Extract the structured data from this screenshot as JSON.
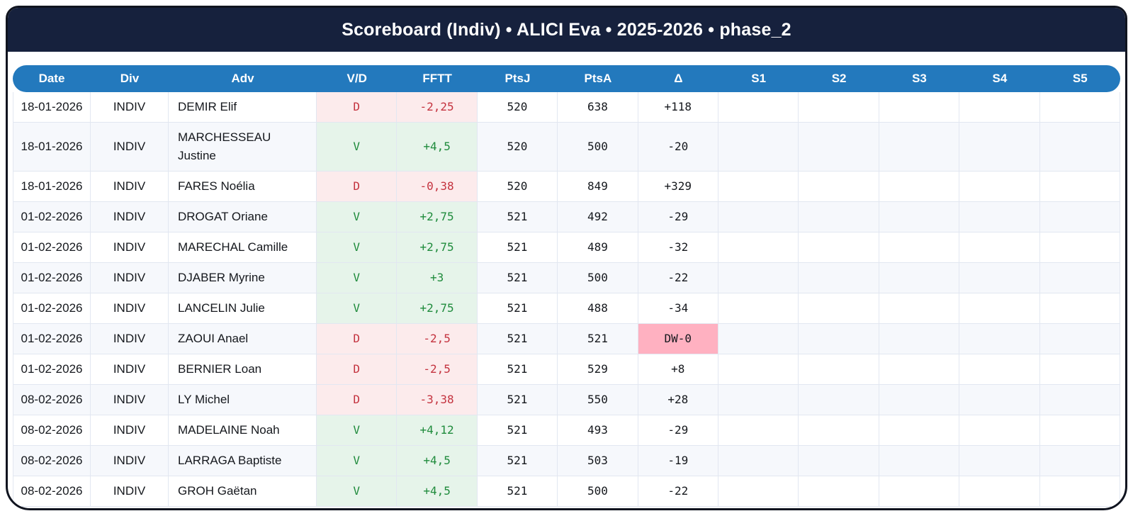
{
  "title": "Scoreboard (Indiv) • ALICI Eva • 2025-2026 • phase_2",
  "colors": {
    "frame": "#10141f",
    "navy": "#16213d",
    "header-blue": "#2379bd",
    "stripe": "#f6f8fc",
    "grid-line": "#e2e7f1",
    "win-bg": "#e6f4ea",
    "win-text": "#1f8b3c",
    "loss-bg": "#fcebec",
    "loss-text": "#c4333f",
    "dw-bg": "#ffb1c1",
    "text": "#15181d"
  },
  "table": {
    "columns": [
      "Date",
      "Div",
      "Adv",
      "V/D",
      "FFTT",
      "PtsJ",
      "PtsA",
      "Δ",
      "S1",
      "S2",
      "S3",
      "S4",
      "S5"
    ],
    "rows": [
      {
        "date": "18-01-2026",
        "div": "INDIV",
        "adv": "DEMIR Elif",
        "vd": "D",
        "fftt": "-2,25",
        "ptsj": "520",
        "ptsa": "638",
        "delta": "+118",
        "delta_dw": false
      },
      {
        "date": "18-01-2026",
        "div": "INDIV",
        "adv": "MARCHESSEAU Justine",
        "vd": "V",
        "fftt": "+4,5",
        "ptsj": "520",
        "ptsa": "500",
        "delta": "-20",
        "delta_dw": false
      },
      {
        "date": "18-01-2026",
        "div": "INDIV",
        "adv": "FARES Noélia",
        "vd": "D",
        "fftt": "-0,38",
        "ptsj": "520",
        "ptsa": "849",
        "delta": "+329",
        "delta_dw": false
      },
      {
        "date": "01-02-2026",
        "div": "INDIV",
        "adv": "DROGAT Oriane",
        "vd": "V",
        "fftt": "+2,75",
        "ptsj": "521",
        "ptsa": "492",
        "delta": "-29",
        "delta_dw": false
      },
      {
        "date": "01-02-2026",
        "div": "INDIV",
        "adv": "MARECHAL Camille",
        "vd": "V",
        "fftt": "+2,75",
        "ptsj": "521",
        "ptsa": "489",
        "delta": "-32",
        "delta_dw": false
      },
      {
        "date": "01-02-2026",
        "div": "INDIV",
        "adv": "DJABER Myrine",
        "vd": "V",
        "fftt": "+3",
        "ptsj": "521",
        "ptsa": "500",
        "delta": "-22",
        "delta_dw": false
      },
      {
        "date": "01-02-2026",
        "div": "INDIV",
        "adv": "LANCELIN Julie",
        "vd": "V",
        "fftt": "+2,75",
        "ptsj": "521",
        "ptsa": "488",
        "delta": "-34",
        "delta_dw": false
      },
      {
        "date": "01-02-2026",
        "div": "INDIV",
        "adv": "ZAOUI Anael",
        "vd": "D",
        "fftt": "-2,5",
        "ptsj": "521",
        "ptsa": "521",
        "delta": "DW-0",
        "delta_dw": true
      },
      {
        "date": "01-02-2026",
        "div": "INDIV",
        "adv": "BERNIER Loan",
        "vd": "D",
        "fftt": "-2,5",
        "ptsj": "521",
        "ptsa": "529",
        "delta": "+8",
        "delta_dw": false
      },
      {
        "date": "08-02-2026",
        "div": "INDIV",
        "adv": "LY Michel",
        "vd": "D",
        "fftt": "-3,38",
        "ptsj": "521",
        "ptsa": "550",
        "delta": "+28",
        "delta_dw": false
      },
      {
        "date": "08-02-2026",
        "div": "INDIV",
        "adv": "MADELAINE Noah",
        "vd": "V",
        "fftt": "+4,12",
        "ptsj": "521",
        "ptsa": "493",
        "delta": "-29",
        "delta_dw": false
      },
      {
        "date": "08-02-2026",
        "div": "INDIV",
        "adv": "LARRAGA Baptiste",
        "vd": "V",
        "fftt": "+4,5",
        "ptsj": "521",
        "ptsa": "503",
        "delta": "-19",
        "delta_dw": false
      },
      {
        "date": "08-02-2026",
        "div": "INDIV",
        "adv": "GROH Gaëtan",
        "vd": "V",
        "fftt": "+4,5",
        "ptsj": "521",
        "ptsa": "500",
        "delta": "-22",
        "delta_dw": false
      }
    ]
  }
}
